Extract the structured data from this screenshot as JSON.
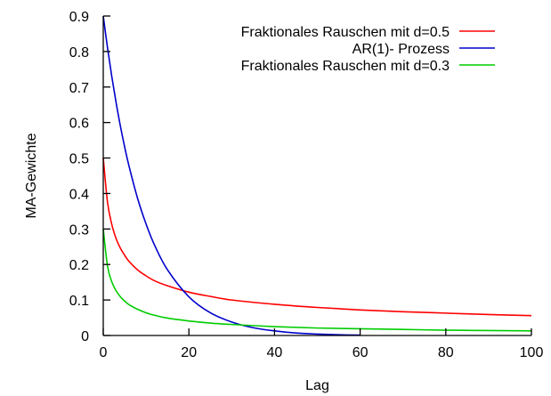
{
  "chart_data": {
    "type": "line",
    "xlabel": "Lag",
    "ylabel": "MA-Gewichte",
    "xlim": [
      0,
      100
    ],
    "ylim": [
      0,
      0.9
    ],
    "xticks": [
      0,
      20,
      40,
      60,
      80,
      100
    ],
    "yticks": [
      0,
      0.1,
      0.2,
      0.3,
      0.4,
      0.5,
      0.6,
      0.7,
      0.8,
      0.9
    ],
    "xtick_labels": [
      "0",
      "20",
      "40",
      "60",
      "80",
      "100"
    ],
    "ytick_labels": [
      "0",
      "0.1",
      "0.2",
      "0.3",
      "0.4",
      "0.5",
      "0.6",
      "0.7",
      "0.8",
      "0.9"
    ],
    "grid": false,
    "legend_position": "top-right",
    "series": [
      {
        "name": "Fraktionales Rauschen mit d=0.5",
        "color": "#ff0000",
        "x": [
          0,
          1,
          2,
          3,
          4,
          5,
          6,
          8,
          10,
          12,
          15,
          20,
          25,
          30,
          40,
          50,
          60,
          70,
          80,
          90,
          100
        ],
        "y": [
          0.5,
          0.375,
          0.3125,
          0.273,
          0.246,
          0.226,
          0.209,
          0.185,
          0.168,
          0.154,
          0.14,
          0.122,
          0.11,
          0.1,
          0.088,
          0.079,
          0.072,
          0.067,
          0.063,
          0.059,
          0.056
        ]
      },
      {
        "name": "AR(1)- Prozess",
        "color": "#0000cc",
        "x": [
          0,
          1,
          2,
          3,
          4,
          5,
          6,
          8,
          10,
          12,
          15,
          20,
          25,
          30,
          35,
          40,
          45,
          50,
          55,
          60
        ],
        "y": [
          0.9,
          0.81,
          0.729,
          0.656,
          0.59,
          0.531,
          0.478,
          0.387,
          0.314,
          0.254,
          0.185,
          0.109,
          0.064,
          0.038,
          0.022,
          0.013,
          0.007,
          0.004,
          0.002,
          0.001
        ]
      },
      {
        "name": "Fraktionales Rauschen mit d=0.3",
        "color": "#00cc00",
        "x": [
          0,
          1,
          2,
          3,
          4,
          5,
          6,
          8,
          10,
          12,
          15,
          20,
          25,
          30,
          40,
          50,
          60,
          70,
          80,
          90,
          100
        ],
        "y": [
          0.3,
          0.195,
          0.151,
          0.126,
          0.109,
          0.097,
          0.087,
          0.074,
          0.064,
          0.057,
          0.049,
          0.041,
          0.035,
          0.031,
          0.025,
          0.021,
          0.019,
          0.017,
          0.015,
          0.014,
          0.013
        ]
      }
    ]
  }
}
